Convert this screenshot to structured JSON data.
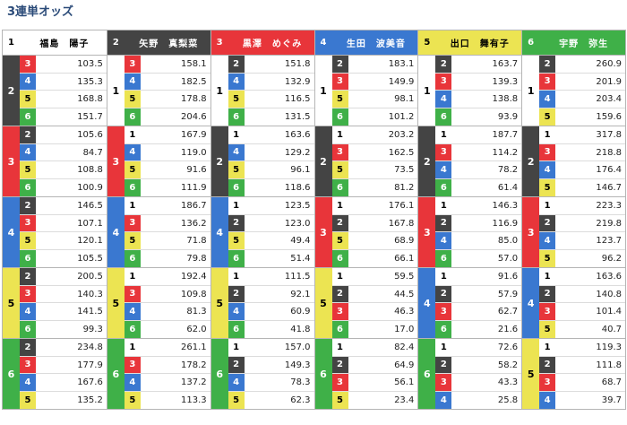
{
  "title": "3連単オッズ",
  "colors": {
    "1": "#ffffff",
    "2": "#444444",
    "3": "#e8353a",
    "4": "#3a78d0",
    "5": "#ece452",
    "6": "#3fb048"
  },
  "columns": [
    {
      "num": "1",
      "name": "福島　陽子",
      "groups": [
        {
          "second": "2",
          "rows": [
            [
              "3",
              "103.5"
            ],
            [
              "4",
              "135.3"
            ],
            [
              "5",
              "168.8"
            ],
            [
              "6",
              "151.7"
            ]
          ]
        },
        {
          "second": "3",
          "rows": [
            [
              "2",
              "105.6"
            ],
            [
              "4",
              "84.7"
            ],
            [
              "5",
              "108.8"
            ],
            [
              "6",
              "100.9"
            ]
          ]
        },
        {
          "second": "4",
          "rows": [
            [
              "2",
              "146.5"
            ],
            [
              "3",
              "107.1"
            ],
            [
              "5",
              "120.1"
            ],
            [
              "6",
              "105.5"
            ]
          ]
        },
        {
          "second": "5",
          "rows": [
            [
              "2",
              "200.5"
            ],
            [
              "3",
              "140.3"
            ],
            [
              "4",
              "141.5"
            ],
            [
              "6",
              "99.3"
            ]
          ]
        },
        {
          "second": "6",
          "rows": [
            [
              "2",
              "234.8"
            ],
            [
              "3",
              "177.9"
            ],
            [
              "4",
              "167.6"
            ],
            [
              "5",
              "135.2"
            ]
          ]
        }
      ]
    },
    {
      "num": "2",
      "name": "矢野　真梨菜",
      "groups": [
        {
          "second": "1",
          "rows": [
            [
              "3",
              "158.1"
            ],
            [
              "4",
              "182.5"
            ],
            [
              "5",
              "178.8"
            ],
            [
              "6",
              "204.6"
            ]
          ]
        },
        {
          "second": "3",
          "rows": [
            [
              "1",
              "167.9"
            ],
            [
              "4",
              "119.0"
            ],
            [
              "5",
              "91.6"
            ],
            [
              "6",
              "111.9"
            ]
          ]
        },
        {
          "second": "4",
          "rows": [
            [
              "1",
              "186.7"
            ],
            [
              "3",
              "136.2"
            ],
            [
              "5",
              "71.8"
            ],
            [
              "6",
              "79.8"
            ]
          ]
        },
        {
          "second": "5",
          "rows": [
            [
              "1",
              "192.4"
            ],
            [
              "3",
              "109.8"
            ],
            [
              "4",
              "81.3"
            ],
            [
              "6",
              "62.0"
            ]
          ]
        },
        {
          "second": "6",
          "rows": [
            [
              "1",
              "261.1"
            ],
            [
              "3",
              "178.2"
            ],
            [
              "4",
              "137.2"
            ],
            [
              "5",
              "113.3"
            ]
          ]
        }
      ]
    },
    {
      "num": "3",
      "name": "黒澤　めぐみ",
      "groups": [
        {
          "second": "1",
          "rows": [
            [
              "2",
              "151.8"
            ],
            [
              "4",
              "132.9"
            ],
            [
              "5",
              "116.5"
            ],
            [
              "6",
              "131.5"
            ]
          ]
        },
        {
          "second": "2",
          "rows": [
            [
              "1",
              "163.6"
            ],
            [
              "4",
              "129.2"
            ],
            [
              "5",
              "96.1"
            ],
            [
              "6",
              "118.6"
            ]
          ]
        },
        {
          "second": "4",
          "rows": [
            [
              "1",
              "123.5"
            ],
            [
              "2",
              "123.0"
            ],
            [
              "5",
              "49.4"
            ],
            [
              "6",
              "51.4"
            ]
          ]
        },
        {
          "second": "5",
          "rows": [
            [
              "1",
              "111.5"
            ],
            [
              "2",
              "92.1"
            ],
            [
              "4",
              "60.9"
            ],
            [
              "6",
              "41.8"
            ]
          ]
        },
        {
          "second": "6",
          "rows": [
            [
              "1",
              "157.0"
            ],
            [
              "2",
              "149.3"
            ],
            [
              "4",
              "78.3"
            ],
            [
              "5",
              "62.3"
            ]
          ]
        }
      ]
    },
    {
      "num": "4",
      "name": "生田　波美音",
      "groups": [
        {
          "second": "1",
          "rows": [
            [
              "2",
              "183.1"
            ],
            [
              "3",
              "149.9"
            ],
            [
              "5",
              "98.1"
            ],
            [
              "6",
              "101.2"
            ]
          ]
        },
        {
          "second": "2",
          "rows": [
            [
              "1",
              "203.2"
            ],
            [
              "3",
              "162.5"
            ],
            [
              "5",
              "73.5"
            ],
            [
              "6",
              "81.2"
            ]
          ]
        },
        {
          "second": "3",
          "rows": [
            [
              "1",
              "176.1"
            ],
            [
              "2",
              "167.8"
            ],
            [
              "5",
              "68.9"
            ],
            [
              "6",
              "66.1"
            ]
          ]
        },
        {
          "second": "5",
          "rows": [
            [
              "1",
              "59.5"
            ],
            [
              "2",
              "44.5"
            ],
            [
              "3",
              "46.3"
            ],
            [
              "6",
              "17.0"
            ]
          ]
        },
        {
          "second": "6",
          "rows": [
            [
              "1",
              "82.4"
            ],
            [
              "2",
              "64.9"
            ],
            [
              "3",
              "56.1"
            ],
            [
              "5",
              "23.4"
            ]
          ]
        }
      ]
    },
    {
      "num": "5",
      "name": "出口　舞有子",
      "groups": [
        {
          "second": "1",
          "rows": [
            [
              "2",
              "163.7"
            ],
            [
              "3",
              "139.3"
            ],
            [
              "4",
              "138.8"
            ],
            [
              "6",
              "93.9"
            ]
          ]
        },
        {
          "second": "2",
          "rows": [
            [
              "1",
              "187.7"
            ],
            [
              "3",
              "114.2"
            ],
            [
              "4",
              "78.2"
            ],
            [
              "6",
              "61.4"
            ]
          ]
        },
        {
          "second": "3",
          "rows": [
            [
              "1",
              "146.3"
            ],
            [
              "2",
              "116.9"
            ],
            [
              "4",
              "85.0"
            ],
            [
              "6",
              "57.0"
            ]
          ]
        },
        {
          "second": "4",
          "rows": [
            [
              "1",
              "91.6"
            ],
            [
              "2",
              "57.9"
            ],
            [
              "3",
              "62.7"
            ],
            [
              "6",
              "21.6"
            ]
          ]
        },
        {
          "second": "6",
          "rows": [
            [
              "1",
              "72.6"
            ],
            [
              "2",
              "58.2"
            ],
            [
              "3",
              "43.3"
            ],
            [
              "4",
              "25.8"
            ]
          ]
        }
      ]
    },
    {
      "num": "6",
      "name": "宇野　弥生",
      "groups": [
        {
          "second": "1",
          "rows": [
            [
              "2",
              "260.9"
            ],
            [
              "3",
              "201.9"
            ],
            [
              "4",
              "203.4"
            ],
            [
              "5",
              "159.6"
            ]
          ]
        },
        {
          "second": "2",
          "rows": [
            [
              "1",
              "317.8"
            ],
            [
              "3",
              "218.8"
            ],
            [
              "4",
              "176.4"
            ],
            [
              "5",
              "146.7"
            ]
          ]
        },
        {
          "second": "3",
          "rows": [
            [
              "1",
              "223.3"
            ],
            [
              "2",
              "219.8"
            ],
            [
              "4",
              "123.7"
            ],
            [
              "5",
              "96.2"
            ]
          ]
        },
        {
          "second": "4",
          "rows": [
            [
              "1",
              "163.6"
            ],
            [
              "2",
              "140.8"
            ],
            [
              "3",
              "101.4"
            ],
            [
              "5",
              "40.7"
            ]
          ]
        },
        {
          "second": "5",
          "rows": [
            [
              "1",
              "119.3"
            ],
            [
              "2",
              "111.8"
            ],
            [
              "3",
              "68.7"
            ],
            [
              "4",
              "39.7"
            ]
          ]
        }
      ]
    }
  ]
}
